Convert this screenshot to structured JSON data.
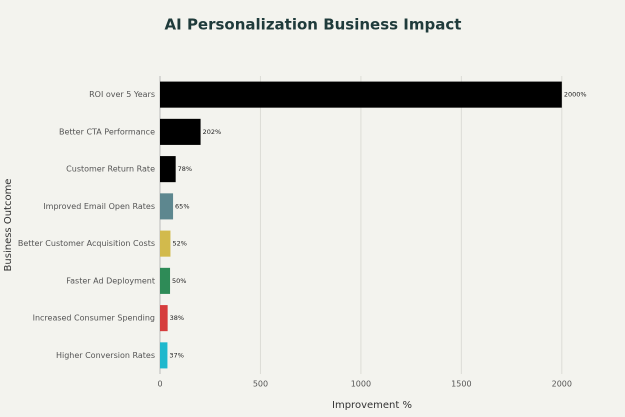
{
  "chart_data": {
    "type": "bar",
    "orientation": "horizontal",
    "title": "AI Personalization Business Impact",
    "x_label": "Improvement %",
    "y_label": "Business Outcome",
    "categories": [
      "ROI over 5 Years",
      "Better CTA Performance",
      "Customer Return Rate",
      "Improved Email Open Rates",
      "Better Customer Acquisition Costs",
      "Faster Ad Deployment",
      "Increased Consumer Spending",
      "Higher Conversion Rates"
    ],
    "values": [
      2000,
      202,
      78,
      65,
      52,
      50,
      38,
      37
    ],
    "value_labels": [
      "2000%",
      "202%",
      "78%",
      "65%",
      "52%",
      "50%",
      "38%",
      "37%"
    ],
    "colors": [
      "#000000",
      "#000000",
      "#000000",
      "#5d878f",
      "#d2ba4c",
      "#2e8b57",
      "#d63c3c",
      "#1fb8cd"
    ],
    "xlim": [
      0,
      2200
    ],
    "xticks": [
      0,
      500,
      1000,
      1500,
      2000
    ],
    "grid": true
  }
}
